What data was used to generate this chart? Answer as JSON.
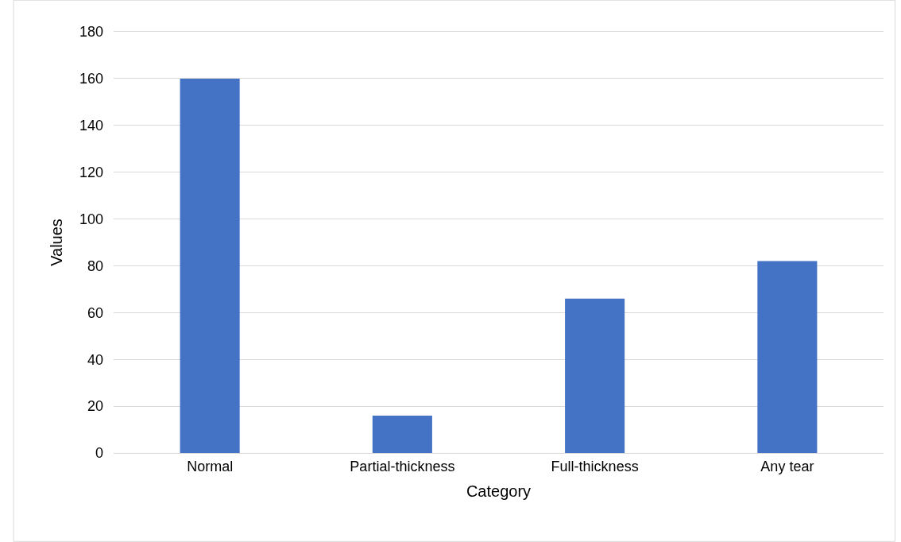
{
  "chart_data": {
    "type": "bar",
    "xlabel": "Category",
    "ylabel": "Values",
    "categories": [
      "Normal",
      "Partial-thickness",
      "Full-thickness",
      "Any tear"
    ],
    "values": [
      160,
      16,
      66,
      82
    ],
    "color": "#4472c4",
    "ylim": [
      0,
      180
    ],
    "yticks": [
      0,
      20,
      40,
      60,
      80,
      100,
      120,
      140,
      160,
      180
    ],
    "grid": "y"
  }
}
